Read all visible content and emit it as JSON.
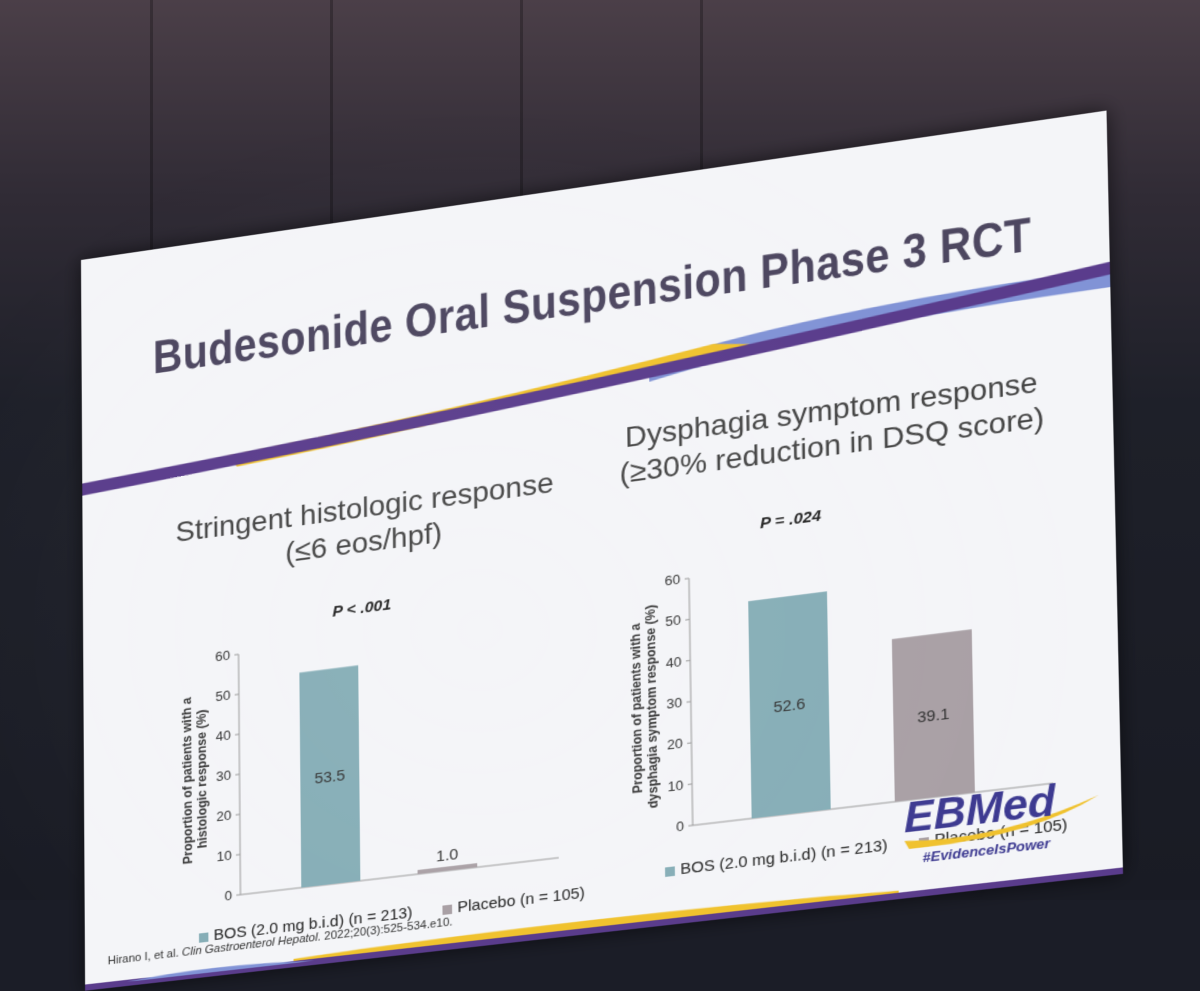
{
  "slide": {
    "title": "Budesonide Oral Suspension Phase 3 RCT",
    "citation_authors": "Hirano I, et al.",
    "citation_journal": "Clin Gastroenterol Hepatol.",
    "citation_ref": "2022;20(3):525-534.e10.",
    "logo_text": "EBMed",
    "logo_tag": "#EvidenceIsPower"
  },
  "colors": {
    "title": "#4d4760",
    "bos_bar": "#86aeb7",
    "placebo_bar": "#a9a0a5",
    "band_purple": "#5a3c8c",
    "band_blue": "#8193d6",
    "band_gold": "#f0c22e"
  },
  "chart_data": [
    {
      "type": "bar",
      "title_line1": "Stringent histologic response",
      "title_line2": "(≤6 eos/hpf)",
      "p_value": "P < .001",
      "ylabel_line1": "Proportion of patients with a",
      "ylabel_line2": "histologic response (%)",
      "ylim": [
        0,
        60
      ],
      "yticks": [
        "0",
        "10",
        "20",
        "30",
        "40",
        "50",
        "60"
      ],
      "categories": [
        "BOS (2.0 mg b.i.d) (n = 213)",
        "Placebo (n = 105)"
      ],
      "values": [
        53.5,
        1.0
      ],
      "value_labels": [
        "53.5",
        "1.0"
      ],
      "legend": [
        "BOS (2.0 mg b.i.d) (n = 213)",
        "Placebo (n = 105)"
      ]
    },
    {
      "type": "bar",
      "title_line1": "Dysphagia symptom response",
      "title_line2": "(≥30% reduction in DSQ score)",
      "p_value": "P = .024",
      "ylabel_line1": "Proportion of patients with a",
      "ylabel_line2": "dysphagia symptom response (%)",
      "ylim": [
        0,
        60
      ],
      "yticks": [
        "0",
        "10",
        "20",
        "30",
        "40",
        "50",
        "60"
      ],
      "categories": [
        "BOS (2.0 mg b.i.d) (n = 213)",
        "Placebo (n = 105)"
      ],
      "values": [
        52.6,
        39.1
      ],
      "value_labels": [
        "52.6",
        "39.1"
      ],
      "legend": [
        "BOS (2.0 mg b.i.d) (n = 213)",
        "Placebo (n = 105)"
      ]
    }
  ]
}
